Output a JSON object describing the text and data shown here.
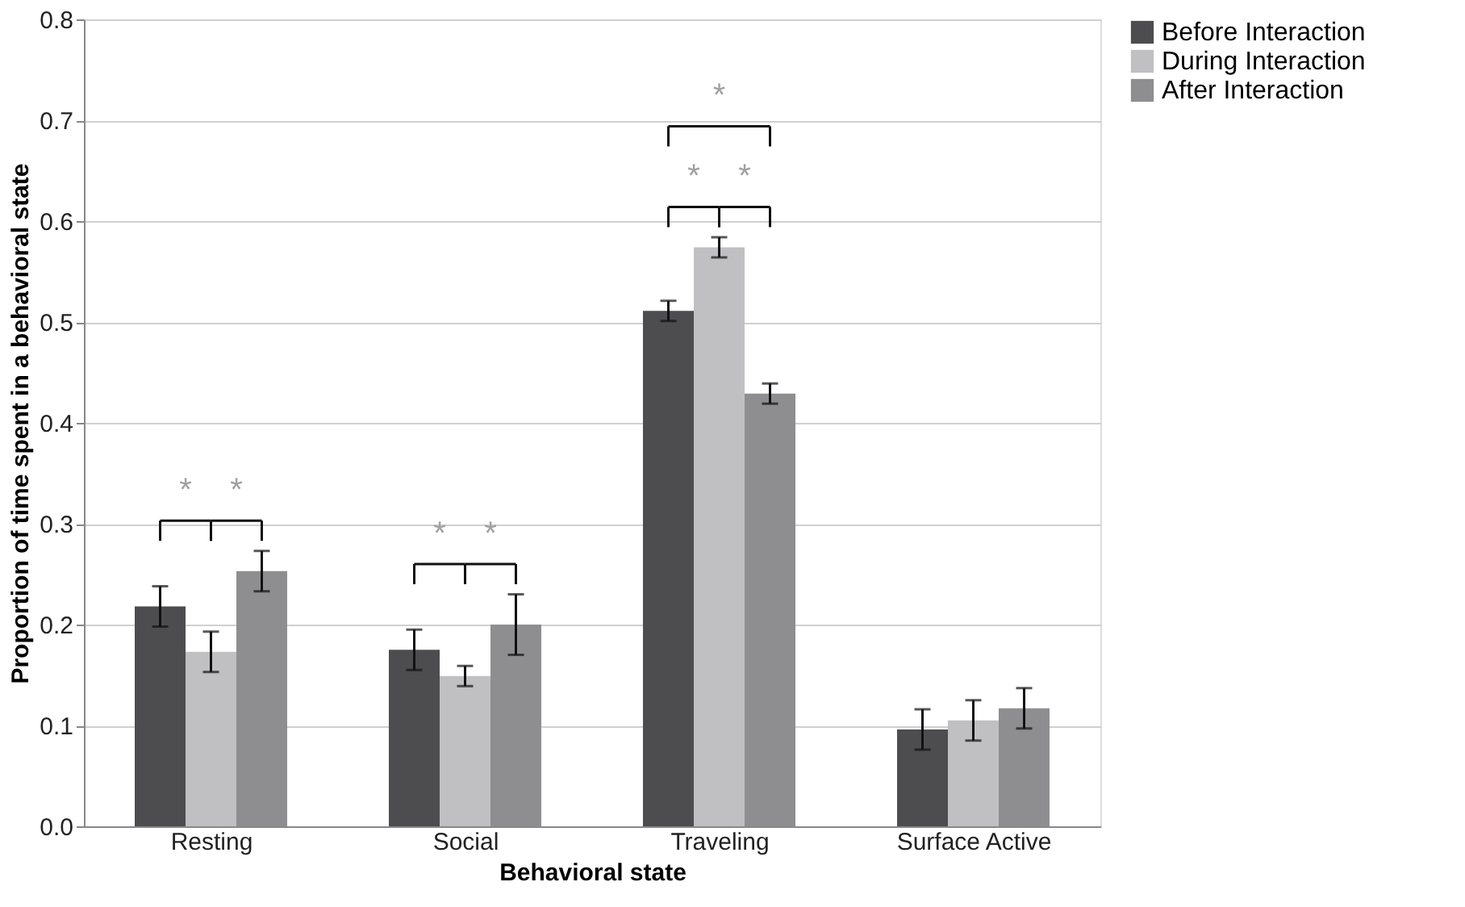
{
  "chart_data": {
    "type": "bar",
    "xlabel": "Behavioral state",
    "ylabel": "Proportion of time spent in a behavioral state",
    "categories": [
      "Resting",
      "Social",
      "Traveling",
      "Surface Active"
    ],
    "series": [
      {
        "name": "Before Interaction",
        "color": "#4d4d4f",
        "values": [
          0.218,
          0.175,
          0.511,
          0.096
        ],
        "errors": [
          0.02,
          0.02,
          0.01,
          0.02
        ]
      },
      {
        "name": "During Interaction",
        "color": "#c0c0c2",
        "values": [
          0.173,
          0.149,
          0.574,
          0.105
        ],
        "errors": [
          0.02,
          0.01,
          0.01,
          0.02
        ]
      },
      {
        "name": "After Interaction",
        "color": "#8e8e90",
        "values": [
          0.253,
          0.2,
          0.429,
          0.117
        ],
        "errors": [
          0.02,
          0.03,
          0.01,
          0.02
        ]
      }
    ],
    "ylim": [
      0,
      0.8
    ],
    "yticks": [
      {
        "value": 0,
        "label": "0.0"
      },
      {
        "value": 0.1,
        "label": "0.1"
      },
      {
        "value": 0.2,
        "label": "0.2"
      },
      {
        "value": 0.3,
        "label": "0.3"
      },
      {
        "value": 0.4,
        "label": "0.4"
      },
      {
        "value": 0.5,
        "label": "0.5"
      },
      {
        "value": 0.6,
        "label": "0.6"
      },
      {
        "value": 0.7,
        "label": "0.7"
      },
      {
        "value": 0.8,
        "label": "0.8"
      }
    ],
    "grid": "y",
    "legend": "right",
    "annotations": [
      "*",
      "*",
      "*",
      "*",
      "*",
      "*",
      "*"
    ]
  }
}
